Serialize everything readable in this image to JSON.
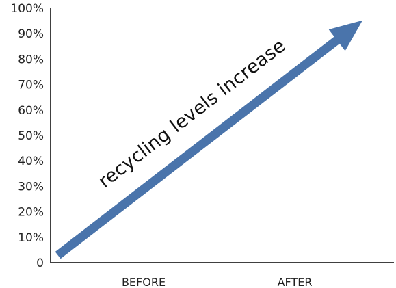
{
  "chart_data": {
    "type": "line",
    "categories": [
      "BEFORE",
      "AFTER"
    ],
    "y_ticks": [
      "0",
      "10%",
      "20%",
      "30%",
      "40%",
      "50%",
      "60%",
      "70%",
      "80%",
      "90%",
      "100%"
    ],
    "ylim": [
      0,
      100
    ],
    "grid": false,
    "legend": "none",
    "series": [
      {
        "values": [
          3,
          95
        ],
        "style": "arrow"
      }
    ],
    "annotation": "recycling levels increase"
  },
  "colors": {
    "arrow": "#4a74ab",
    "axis": "#000000",
    "text": "#222222"
  }
}
